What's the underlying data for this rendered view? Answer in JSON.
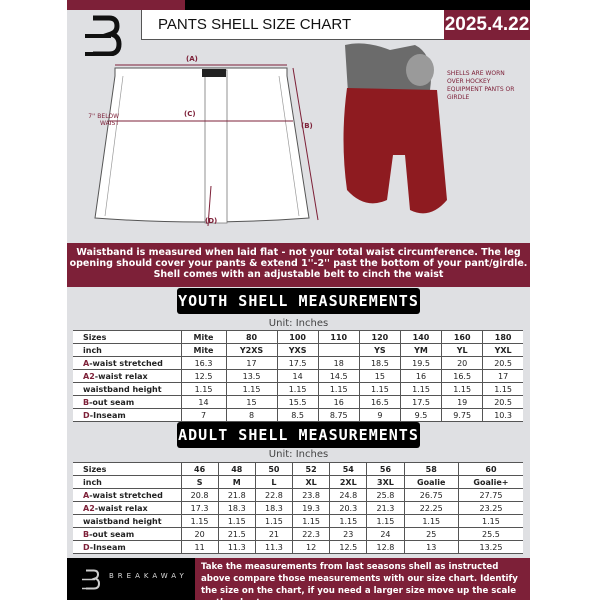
{
  "header": {
    "title": "PANTS SHELL SIZE CHART",
    "date": "2025.4.22"
  },
  "diagram": {
    "label_a": "(A)",
    "label_b": "(B)",
    "label_c": "(C)",
    "label_d": "(D)",
    "c_note": "7'' BELOW WAIST",
    "side_note": "SHELLS ARE WORN OVER HOCKEY EQUIPMENT PANTS OR GIRDLE"
  },
  "band_text": "Waistband is measured when laid flat - not your total waist circumference. The leg opening should cover your pants & extend 1''-2'' past the bottom of your pant/girdle. Shell comes with an adjustable belt to cinch the waist",
  "youth": {
    "heading": "YOUTH SHELL MEASUREMENTS",
    "unit": "Unit: Inches",
    "rows": [
      {
        "prefix": "",
        "label": "Sizes",
        "values": [
          "Mite",
          "80",
          "100",
          "110",
          "120",
          "140",
          "160",
          "180"
        ]
      },
      {
        "prefix": "",
        "label": "inch",
        "values": [
          "Mite",
          "Y2XS",
          "YXS",
          "",
          "YS",
          "YM",
          "YL",
          "YXL"
        ]
      },
      {
        "prefix": "A",
        "label": "-waist stretched",
        "values": [
          "16.3",
          "17",
          "17.5",
          "18",
          "18.5",
          "19.5",
          "20",
          "20.5"
        ]
      },
      {
        "prefix": "A2",
        "label": "-waist relax",
        "values": [
          "12.5",
          "13.5",
          "14",
          "14.5",
          "15",
          "16",
          "16.5",
          "17"
        ]
      },
      {
        "prefix": "",
        "label": "waistband height",
        "values": [
          "1.15",
          "1.15",
          "1.15",
          "1.15",
          "1.15",
          "1.15",
          "1.15",
          "1.15"
        ]
      },
      {
        "prefix": "B",
        "label": "-out seam",
        "values": [
          "14",
          "15",
          "15.5",
          "16",
          "16.5",
          "17.5",
          "19",
          "20.5"
        ]
      },
      {
        "prefix": "D",
        "label": "-Inseam",
        "values": [
          "7",
          "8",
          "8.5",
          "8.75",
          "9",
          "9.5",
          "9.75",
          "10.3"
        ]
      }
    ]
  },
  "adult": {
    "heading": "ADULT SHELL MEASUREMENTS",
    "unit": "Unit: Inches",
    "rows": [
      {
        "prefix": "",
        "label": "Sizes",
        "values": [
          "46",
          "48",
          "50",
          "52",
          "54",
          "56",
          "58",
          "60"
        ]
      },
      {
        "prefix": "",
        "label": "inch",
        "values": [
          "S",
          "M",
          "L",
          "XL",
          "2XL",
          "3XL",
          "Goalie",
          "Goalie+"
        ]
      },
      {
        "prefix": "A",
        "label": "-waist stretched",
        "values": [
          "20.8",
          "21.8",
          "22.8",
          "23.8",
          "24.8",
          "25.8",
          "26.75",
          "27.75"
        ]
      },
      {
        "prefix": "A2",
        "label": "-waist relax",
        "values": [
          "17.3",
          "18.3",
          "18.3",
          "19.3",
          "20.3",
          "21.3",
          "22.25",
          "23.25"
        ]
      },
      {
        "prefix": "",
        "label": "waistband height",
        "values": [
          "1.15",
          "1.15",
          "1.15",
          "1.15",
          "1.15",
          "1.15",
          "1.15",
          "1.15"
        ]
      },
      {
        "prefix": "B",
        "label": "-out seam",
        "values": [
          "20",
          "21.5",
          "21",
          "22.3",
          "23",
          "24",
          "25",
          "25.5"
        ]
      },
      {
        "prefix": "D",
        "label": "-Inseam",
        "values": [
          "11",
          "11.3",
          "11.3",
          "12",
          "12.5",
          "12.8",
          "13",
          "13.25"
        ]
      }
    ]
  },
  "footer": {
    "brand": "BREAKAWAY",
    "text": "Take the measurements from last seasons shell as instructed above compare those measurements  with our size chart. Identify the size on the chart, if you need a larger size move up the scale on the chart"
  },
  "colors": {
    "accent": "#7d2038",
    "dark": "#000000",
    "background": "#dfe0e3"
  }
}
